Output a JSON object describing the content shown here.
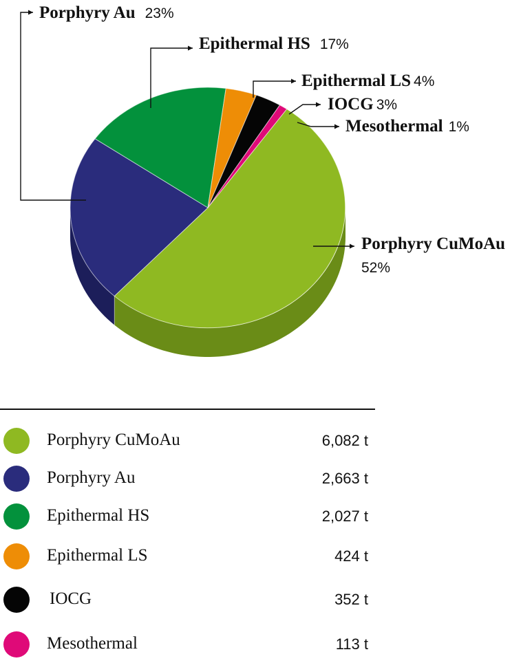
{
  "chart_data": {
    "type": "pie",
    "title": "",
    "unit": "t",
    "series": [
      {
        "name": "Porphyry CuMoAu",
        "value": 6082,
        "display_value": "6,082 t",
        "percent": 52,
        "percent_label": "52%",
        "color": "#8FB922",
        "side_color": "#6A8C17"
      },
      {
        "name": "Porphyry Au",
        "value": 2663,
        "display_value": "2,663 t",
        "percent": 23,
        "percent_label": "23%",
        "color": "#2A2C7C",
        "side_color": "#1C1E5A"
      },
      {
        "name": "Epithermal HS",
        "value": 2027,
        "display_value": "2,027 t",
        "percent": 17,
        "percent_label": "17%",
        "color": "#03913C",
        "side_color": "#036B2D"
      },
      {
        "name": "Epithermal LS",
        "value": 424,
        "display_value": "424 t",
        "percent": 4,
        "percent_label": "4%",
        "color": "#EE8D06",
        "side_color": "#B56A04"
      },
      {
        "name": "IOCG",
        "value": 352,
        "display_value": "352 t",
        "percent": 3,
        "percent_label": "3%",
        "color": "#050505",
        "side_color": "#000000"
      },
      {
        "name": "Mesothermal",
        "value": 113,
        "display_value": "113 t",
        "percent": 1,
        "percent_label": "1%",
        "color": "#DF0A78",
        "side_color": "#A8075A"
      }
    ]
  }
}
